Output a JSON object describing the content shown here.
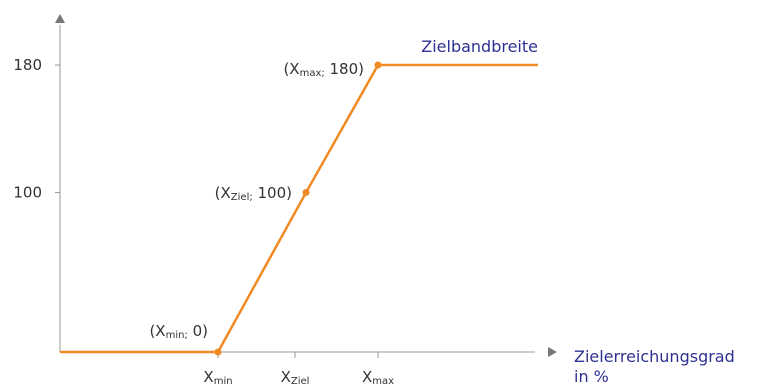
{
  "chart_data": {
    "type": "line",
    "series": [
      {
        "name": "Zielbandbreite",
        "color": "#f08a24",
        "line": [
          "x_min_left",
          "X_min",
          "X_Ziel",
          "X_max",
          "x_max_right"
        ],
        "y": [
          0,
          0,
          100,
          180,
          180
        ],
        "markers": [
          "X_min",
          "X_Ziel",
          "X_max"
        ]
      }
    ],
    "x_ticks": [
      {
        "id": "X_min",
        "base": "X",
        "sub": "min"
      },
      {
        "id": "X_Ziel",
        "base": "X",
        "sub": "Ziel"
      },
      {
        "id": "X_max",
        "base": "X",
        "sub": "max"
      }
    ],
    "y_ticks": [
      100,
      180
    ],
    "xlabel": [
      "Zielerreichungsgrad",
      "in %"
    ],
    "ylabel": "",
    "ylim": [
      0,
      200
    ],
    "grid": false,
    "annotations": [
      {
        "at": "X_min",
        "y": 0,
        "text_pre": "(X",
        "text_sub": "min;",
        "text_post": " 0)"
      },
      {
        "at": "X_Ziel",
        "y": 100,
        "text_pre": "(X",
        "text_sub": "Ziel;",
        "text_post": " 100)"
      },
      {
        "at": "X_max",
        "y": 180,
        "text_pre": "(X",
        "text_sub": "max;",
        "text_post": " 180)"
      }
    ],
    "colors": {
      "series": "#f08a24",
      "label": "#2e3191",
      "axis": "#999999",
      "text": "#333333"
    }
  }
}
